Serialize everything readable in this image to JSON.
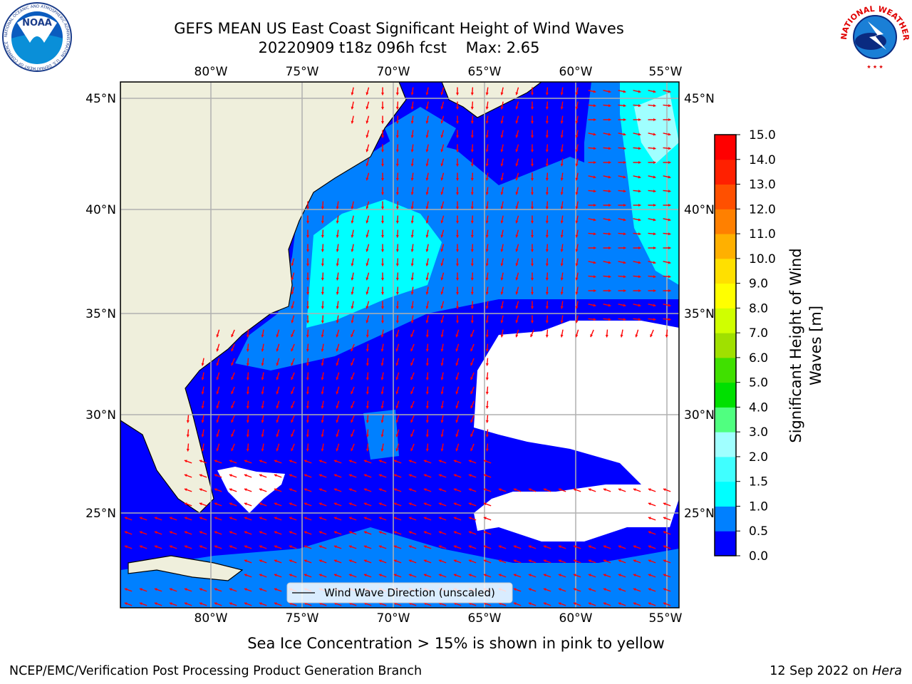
{
  "header": {
    "title_line1": "GEFS MEAN US East Coast Significant Height of Wind Waves",
    "title_line2": "20220909 t18z 096h fcst    Max: 2.65"
  },
  "logos": {
    "noaa_text": "NOAA",
    "noaa_ring_text": "NATIONAL OCEANIC AND ATMOSPHERIC ADMINISTRATION · U.S. DEPARTMENT OF COMMERCE",
    "nws_ring_text": "NATIONAL WEATHER SERVICE"
  },
  "map": {
    "lon_labels": [
      "80°W",
      "75°W",
      "70°W",
      "65°W",
      "60°W",
      "55°W"
    ],
    "lat_labels": [
      "45°N",
      "40°N",
      "35°N",
      "30°N",
      "25°N"
    ],
    "legend_label": "Wind Wave Direction (unscaled)",
    "colors": {
      "land": "#efefdc",
      "arrow": "#ff0000",
      "grid": "#b0b0b0"
    }
  },
  "colorbar": {
    "label_line1": "Significant Height of Wind",
    "label_line2": "Waves [m]",
    "ticks": [
      "0.0",
      "0.5",
      "1.0",
      "1.5",
      "2.0",
      "3.0",
      "4.0",
      "5.0",
      "6.0",
      "7.0",
      "8.0",
      "9.0",
      "10.0",
      "11.0",
      "12.0",
      "13.0",
      "14.0",
      "15.0"
    ],
    "colors": [
      "#0000ff",
      "#0080ff",
      "#00ffff",
      "#40ffff",
      "#a0ffff",
      "#50ff80",
      "#00e000",
      "#40e000",
      "#a0e000",
      "#d0ff00",
      "#ffff00",
      "#ffe000",
      "#ffb000",
      "#ff8000",
      "#ff5000",
      "#ff2000",
      "#ff0000"
    ]
  },
  "note": "Sea Ice Concentration > 15% is shown in pink to yellow",
  "footer": {
    "left": "NCEP/EMC/Verification Post Processing Product Generation Branch",
    "right_prefix": "12 Sep 2022 on ",
    "right_host": "Hera"
  }
}
